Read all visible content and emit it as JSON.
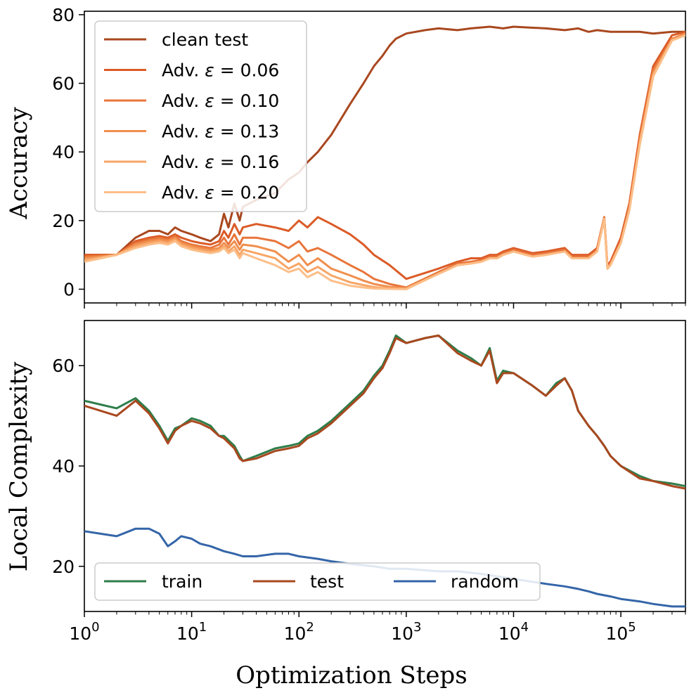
{
  "chart_data": [
    {
      "type": "line",
      "ylabel": "Accuracy",
      "xscale": "log",
      "xlim": [
        1,
        400000
      ],
      "ylim": [
        -4,
        81
      ],
      "yticks": [
        0,
        20,
        40,
        60,
        80
      ],
      "legend_position": "top-left",
      "series": [
        {
          "name": "clean test",
          "label_prefix": "clean test",
          "color": "#a9481f",
          "x": [
            1,
            2,
            3,
            4,
            5,
            6,
            7,
            8,
            10,
            12,
            15,
            18,
            20,
            22,
            25,
            28,
            30,
            40,
            60,
            80,
            100,
            120,
            150,
            200,
            300,
            400,
            500,
            600,
            700,
            800,
            1000,
            1500,
            2000,
            3000,
            4000,
            6000,
            8000,
            10000,
            20000,
            30000,
            40000,
            50000,
            60000,
            80000,
            100000,
            150000,
            200000,
            300000,
            400000
          ],
          "y": [
            10,
            10,
            15,
            17,
            17,
            16,
            18,
            17,
            16,
            15,
            14,
            16,
            22,
            18,
            25,
            20,
            24,
            26,
            28,
            32,
            34,
            37,
            40,
            45,
            54,
            60,
            65,
            68,
            71,
            73,
            74.5,
            75.5,
            76,
            75.5,
            76,
            76.5,
            76,
            76.5,
            76,
            75.5,
            76,
            75,
            75.5,
            75,
            75,
            75,
            74.5,
            75,
            75
          ]
        },
        {
          "name": "Adv. ε = 0.06",
          "label_prefix": "Adv. ",
          "label_value": "0.06",
          "color": "#db5b27",
          "x": [
            1,
            2,
            3,
            4,
            5,
            6,
            7,
            8,
            10,
            12,
            15,
            18,
            20,
            22,
            25,
            28,
            30,
            40,
            60,
            80,
            100,
            120,
            150,
            200,
            300,
            400,
            500,
            700,
            1000,
            2000,
            3000,
            4000,
            5000,
            6000,
            7000,
            8000,
            10000,
            15000,
            20000,
            30000,
            35000,
            40000,
            50000,
            60000,
            70000,
            75000,
            80000,
            100000,
            120000,
            150000,
            200000,
            300000,
            400000
          ],
          "y": [
            10,
            10,
            14,
            15,
            15.5,
            15,
            16,
            15,
            14,
            13.5,
            13,
            14,
            17,
            15,
            19,
            16,
            18,
            19,
            18,
            17,
            20,
            18,
            21,
            19,
            16,
            13,
            10,
            7,
            3,
            6,
            8,
            9,
            9,
            10,
            10,
            11,
            12,
            10.5,
            11,
            12,
            10,
            10,
            10,
            12,
            21,
            7,
            8,
            15,
            25,
            45,
            65,
            74,
            75
          ]
        },
        {
          "name": "Adv. ε = 0.10",
          "label_prefix": "Adv. ",
          "label_value": "0.10",
          "color": "#e8753a",
          "x": [
            1,
            2,
            3,
            4,
            5,
            6,
            7,
            8,
            10,
            12,
            15,
            18,
            20,
            22,
            25,
            28,
            30,
            40,
            60,
            80,
            100,
            120,
            150,
            200,
            300,
            400,
            500,
            700,
            1000,
            2000,
            3000,
            4000,
            5000,
            6000,
            7000,
            8000,
            10000,
            15000,
            20000,
            30000,
            35000,
            40000,
            50000,
            60000,
            70000,
            75000,
            80000,
            100000,
            120000,
            150000,
            200000,
            300000,
            400000
          ],
          "y": [
            9.5,
            10,
            13.5,
            14.5,
            15,
            14.5,
            15.5,
            14,
            13,
            12.5,
            12,
            13,
            15,
            13,
            16,
            13,
            15,
            15,
            14,
            12,
            14,
            11,
            12,
            10,
            7,
            5,
            3,
            1.5,
            0.5,
            5,
            7.5,
            8,
            8.5,
            9.5,
            9.5,
            10.5,
            11.5,
            10,
            10.5,
            11.5,
            9.5,
            9.5,
            9.5,
            11.5,
            21,
            6.5,
            7.5,
            14,
            24,
            44,
            64,
            73,
            74.5
          ]
        },
        {
          "name": "Adv. ε = 0.13",
          "label_prefix": "Adv. ",
          "label_value": "0.13",
          "color": "#f08e4d",
          "x": [
            1,
            2,
            3,
            4,
            5,
            6,
            7,
            8,
            10,
            12,
            15,
            18,
            20,
            22,
            25,
            28,
            30,
            40,
            60,
            80,
            100,
            120,
            150,
            200,
            300,
            400,
            500,
            700,
            1000,
            2000,
            3000,
            4000,
            5000,
            6000,
            7000,
            8000,
            10000,
            15000,
            20000,
            30000,
            35000,
            40000,
            50000,
            60000,
            70000,
            75000,
            80000,
            100000,
            120000,
            150000,
            200000,
            300000,
            400000
          ],
          "y": [
            9,
            10,
            13,
            14,
            14.5,
            14,
            15,
            13.5,
            12.5,
            12,
            11.5,
            12,
            13.5,
            12,
            14,
            11.5,
            13,
            12.5,
            11,
            8,
            10,
            7,
            9,
            6,
            4,
            2.5,
            1.5,
            0.7,
            0.3,
            4.5,
            7,
            7.5,
            8,
            9,
            9,
            10,
            11,
            9.5,
            10,
            11,
            9,
            9,
            9,
            11,
            20.5,
            6,
            7,
            13.5,
            23.5,
            43,
            63,
            73,
            74.5
          ]
        },
        {
          "name": "Adv. ε = 0.16",
          "label_prefix": "Adv. ",
          "label_value": "0.16",
          "color": "#f7a566",
          "x": [
            1,
            2,
            3,
            4,
            5,
            6,
            7,
            8,
            10,
            12,
            15,
            18,
            20,
            22,
            25,
            28,
            30,
            40,
            60,
            80,
            100,
            120,
            150,
            200,
            300,
            400,
            500,
            700,
            1000,
            2000,
            3000,
            4000,
            5000,
            6000,
            7000,
            8000,
            10000,
            15000,
            20000,
            30000,
            35000,
            40000,
            50000,
            60000,
            70000,
            75000,
            80000,
            100000,
            120000,
            150000,
            200000,
            300000,
            400000
          ],
          "y": [
            8.5,
            10,
            12.5,
            13.5,
            14,
            13.5,
            14.5,
            13,
            12,
            11.5,
            11,
            11.5,
            12.5,
            11,
            12.5,
            10,
            11.5,
            10.5,
            9,
            6,
            7.5,
            5,
            6.5,
            4,
            2,
            1.2,
            0.6,
            0.2,
            0.1,
            4.5,
            7,
            7.5,
            8,
            9,
            9,
            10,
            11,
            9.5,
            10,
            11,
            9,
            9,
            9,
            11,
            20.5,
            6,
            7,
            13.5,
            23,
            42.5,
            62.5,
            72.5,
            74
          ]
        },
        {
          "name": "Adv. ε = 0.20",
          "label_prefix": "Adv. ",
          "label_value": "0.20",
          "color": "#fcbe88",
          "x": [
            1,
            2,
            3,
            4,
            5,
            6,
            7,
            8,
            10,
            12,
            15,
            18,
            20,
            22,
            25,
            28,
            30,
            40,
            60,
            80,
            100,
            120,
            150,
            200,
            300,
            400,
            500,
            700,
            1000,
            2000,
            3000,
            4000,
            5000,
            6000,
            7000,
            8000,
            10000,
            15000,
            20000,
            30000,
            35000,
            40000,
            50000,
            60000,
            70000,
            75000,
            80000,
            100000,
            120000,
            150000,
            200000,
            300000,
            400000
          ],
          "y": [
            8,
            10,
            12,
            13,
            13.5,
            13,
            14,
            12.5,
            11.5,
            11,
            10.5,
            11,
            12,
            10.5,
            11.5,
            9,
            10.5,
            9,
            7,
            5,
            6,
            3.5,
            5,
            2.5,
            1,
            0.5,
            0.2,
            0.1,
            0,
            4.5,
            7,
            7.5,
            8,
            9,
            9,
            10,
            11,
            9.5,
            10,
            11,
            9,
            9,
            9,
            11,
            20.5,
            6,
            7,
            13.5,
            23,
            42,
            62,
            72.5,
            74
          ]
        }
      ]
    },
    {
      "type": "line",
      "ylabel": "Local Complexity",
      "xlabel": "Optimization Steps",
      "xscale": "log",
      "xlim": [
        1,
        400000
      ],
      "ylim": [
        11,
        69
      ],
      "yticks": [
        20,
        40,
        60
      ],
      "xticks": [
        1,
        10,
        100,
        1000,
        10000,
        100000
      ],
      "xtick_labels": [
        {
          "base": "10",
          "exp": "0"
        },
        {
          "base": "10",
          "exp": "1"
        },
        {
          "base": "10",
          "exp": "2"
        },
        {
          "base": "10",
          "exp": "3"
        },
        {
          "base": "10",
          "exp": "4"
        },
        {
          "base": "10",
          "exp": "5"
        }
      ],
      "legend_position": "bottom-left",
      "series": [
        {
          "name": "train",
          "color": "#2e7d4a",
          "x": [
            1,
            2,
            3,
            4,
            5,
            6,
            7,
            8,
            10,
            12,
            15,
            18,
            20,
            25,
            28,
            30,
            40,
            60,
            80,
            100,
            120,
            150,
            200,
            300,
            400,
            500,
            600,
            700,
            800,
            1000,
            1500,
            2000,
            3000,
            4000,
            5000,
            6000,
            7000,
            8000,
            10000,
            15000,
            20000,
            25000,
            30000,
            35000,
            40000,
            50000,
            60000,
            70000,
            80000,
            100000,
            150000,
            200000,
            300000,
            400000
          ],
          "y": [
            53,
            51.5,
            53.5,
            51,
            48,
            45,
            47.5,
            48,
            49.5,
            49,
            48,
            46,
            46,
            44,
            42,
            41,
            42,
            43.5,
            44,
            44.5,
            46,
            47,
            49,
            52.5,
            55,
            58,
            60,
            63,
            66,
            64.5,
            65.5,
            66,
            63,
            61.5,
            60,
            63.5,
            57,
            59,
            58.5,
            56,
            54,
            56.5,
            57.5,
            55,
            51,
            48,
            46,
            44,
            42,
            40,
            38,
            37,
            36.5,
            36
          ]
        },
        {
          "name": "test",
          "color": "#a9481f",
          "x": [
            1,
            2,
            3,
            4,
            5,
            6,
            7,
            8,
            10,
            12,
            15,
            18,
            20,
            25,
            28,
            30,
            40,
            60,
            80,
            100,
            120,
            150,
            200,
            300,
            400,
            500,
            600,
            700,
            800,
            1000,
            1500,
            2000,
            3000,
            4000,
            5000,
            6000,
            7000,
            8000,
            10000,
            15000,
            20000,
            25000,
            30000,
            35000,
            40000,
            50000,
            60000,
            70000,
            80000,
            100000,
            150000,
            200000,
            300000,
            400000
          ],
          "y": [
            52,
            50,
            53,
            50.5,
            47.5,
            44.5,
            47,
            48,
            49,
            48.5,
            47.5,
            46,
            45.5,
            43.5,
            41.5,
            41,
            41.5,
            43,
            43.5,
            44,
            45.5,
            46.5,
            48.5,
            52,
            54.5,
            57.5,
            59.5,
            62.5,
            65.5,
            64.5,
            65.5,
            66,
            62.5,
            61,
            60,
            63,
            56.5,
            58.5,
            58.5,
            56,
            54,
            56,
            57.5,
            55,
            51,
            48,
            46,
            44,
            42,
            40,
            37.5,
            37,
            36,
            35.5
          ]
        },
        {
          "name": "random",
          "color": "#3465a8",
          "x": [
            1,
            2,
            3,
            4,
            5,
            6,
            7,
            8,
            10,
            12,
            15,
            20,
            25,
            30,
            40,
            60,
            80,
            100,
            150,
            200,
            300,
            500,
            700,
            800,
            1000,
            2000,
            3000,
            5000,
            7000,
            10000,
            20000,
            30000,
            40000,
            50000,
            60000,
            80000,
            100000,
            150000,
            200000,
            300000,
            400000
          ],
          "y": [
            27,
            26,
            27.5,
            27.5,
            26.5,
            24,
            25,
            26,
            25.5,
            24.5,
            24,
            23,
            22.5,
            22,
            22,
            22.5,
            22.5,
            22,
            21.5,
            21,
            20.5,
            20,
            19.5,
            19.5,
            19.5,
            19,
            19,
            18.5,
            18,
            17.5,
            16.5,
            16,
            15.5,
            15,
            14.5,
            14,
            13.5,
            13,
            12.5,
            12,
            12
          ]
        }
      ]
    }
  ]
}
